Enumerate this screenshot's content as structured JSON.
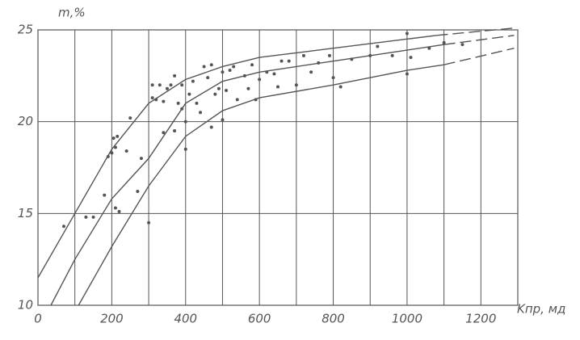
{
  "chart_data": {
    "type": "scatter",
    "y_label": "m,%",
    "x_label": "Kпр, мд",
    "xlim": [
      0,
      1300
    ],
    "ylim": [
      10,
      25
    ],
    "xticks": [
      0,
      200,
      400,
      600,
      800,
      1000,
      1200
    ],
    "yticks": [
      10,
      15,
      20,
      25
    ],
    "xgrid": [
      100,
      200,
      300,
      400,
      500,
      600,
      700,
      800,
      900,
      1000,
      1100,
      1200
    ],
    "grid": true,
    "color": "#555555",
    "x": [
      70,
      130,
      150,
      180,
      190,
      200,
      205,
      210,
      215,
      210,
      220,
      240,
      250,
      270,
      280,
      300,
      310,
      310,
      320,
      330,
      340,
      340,
      350,
      360,
      370,
      370,
      380,
      390,
      390,
      400,
      400,
      410,
      420,
      430,
      440,
      450,
      460,
      470,
      470,
      480,
      490,
      500,
      500,
      510,
      520,
      530,
      540,
      560,
      570,
      580,
      590,
      600,
      620,
      640,
      650,
      660,
      680,
      700,
      720,
      740,
      760,
      790,
      800,
      820,
      850,
      900,
      920,
      960,
      1000,
      1000,
      1010,
      1060,
      1100,
      1150
    ],
    "values": [
      14.3,
      14.8,
      14.8,
      16,
      18.1,
      18.3,
      19.1,
      18.6,
      19.2,
      15.3,
      15.1,
      18.4,
      20.2,
      16.2,
      18,
      14.5,
      21.3,
      22,
      21.2,
      22,
      21.1,
      19.4,
      21.8,
      22,
      19.5,
      22.5,
      21,
      22,
      20.7,
      18.5,
      20,
      21.5,
      22.2,
      21,
      20.5,
      23,
      22.4,
      23.1,
      19.7,
      21.5,
      21.8,
      20.1,
      22.7,
      21.7,
      22.8,
      23,
      21.2,
      22.5,
      21.8,
      23.1,
      21.2,
      22.3,
      22.7,
      22.6,
      21.9,
      23.3,
      23.3,
      22,
      23.6,
      22.7,
      23.2,
      23.6,
      22.4,
      21.9,
      23.4,
      23.6,
      24.1,
      23.6,
      24.8,
      22.6,
      23.5,
      24,
      24.3,
      24.2
    ],
    "curves": [
      {
        "style": "solid",
        "x": [
          0,
          100,
          200,
          300,
          400,
          500,
          600,
          800,
          1000,
          1080
        ],
        "values": [
          11.5,
          15,
          18.5,
          21,
          22.3,
          23,
          23.5,
          24,
          24.5,
          24.7
        ]
      },
      {
        "style": "dashed",
        "x": [
          1080,
          1290
        ],
        "values": [
          24.7,
          25.1
        ]
      },
      {
        "style": "solid",
        "x": [
          35,
          100,
          200,
          300,
          400,
          500,
          600,
          800,
          1000,
          1100
        ],
        "values": [
          10,
          12.5,
          15.8,
          18,
          21,
          22.2,
          22.7,
          23.3,
          23.9,
          24.2
        ]
      },
      {
        "style": "dashed",
        "x": [
          1100,
          1290
        ],
        "values": [
          24.2,
          24.7
        ]
      },
      {
        "style": "solid",
        "x": [
          110,
          200,
          300,
          400,
          500,
          600,
          800,
          1000,
          1100
        ],
        "values": [
          10,
          13.2,
          16.5,
          19.2,
          20.6,
          21.3,
          22,
          22.8,
          23.1
        ]
      },
      {
        "style": "dashed",
        "x": [
          1100,
          1290
        ],
        "values": [
          23.1,
          24
        ]
      }
    ]
  }
}
